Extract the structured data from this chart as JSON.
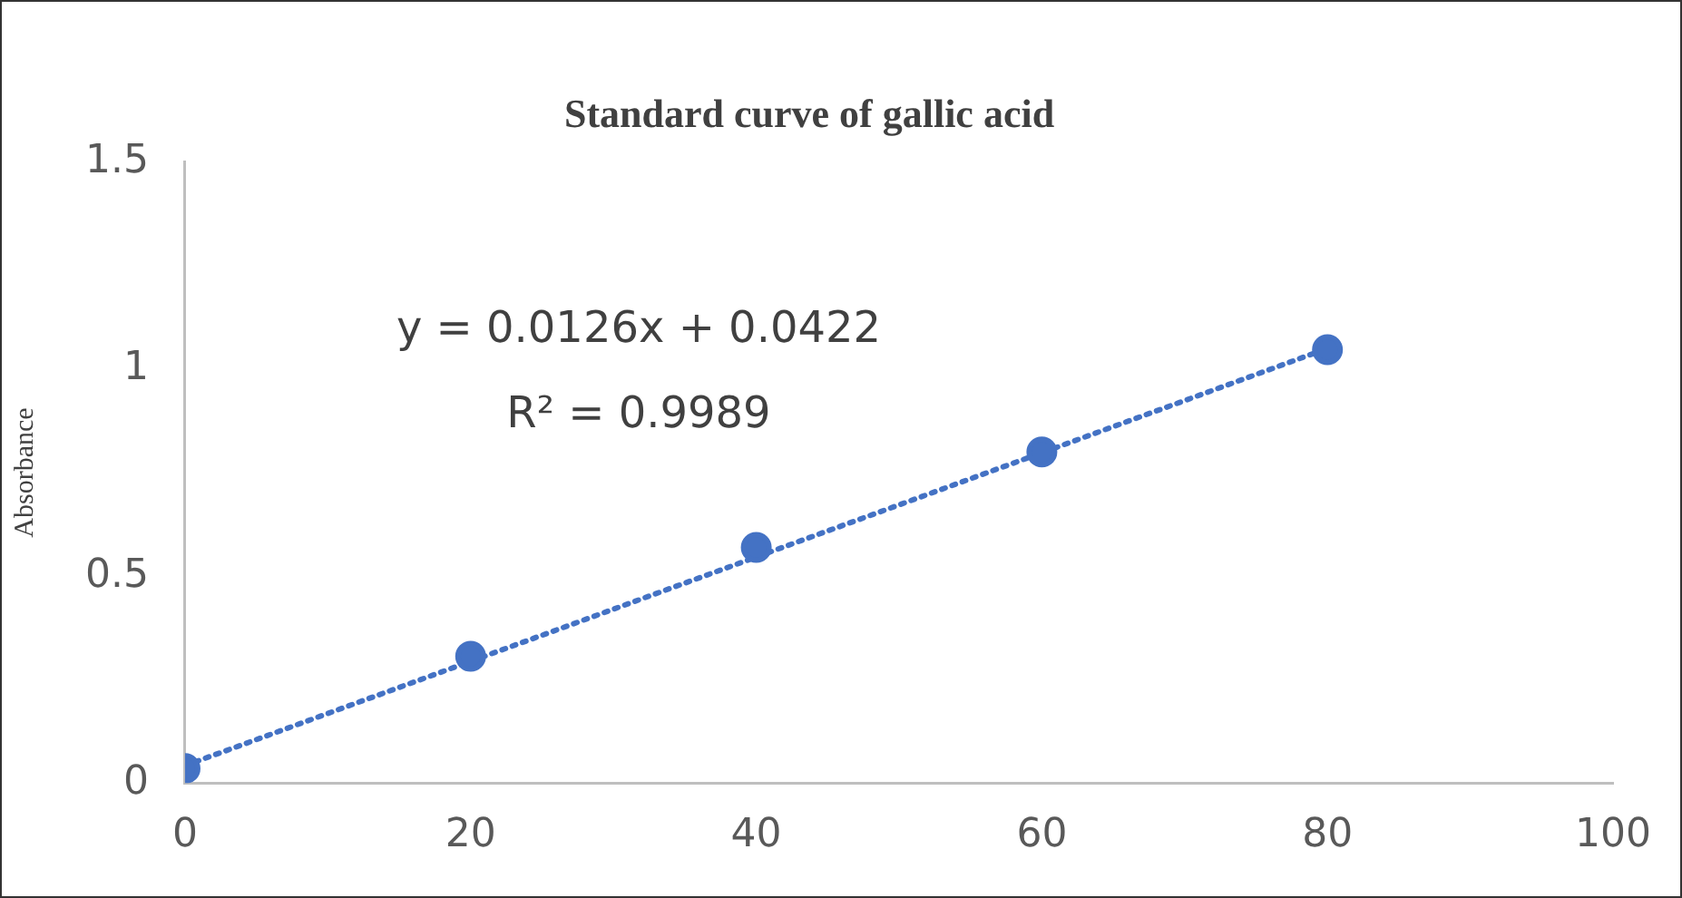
{
  "chart_data": {
    "type": "scatter",
    "title": "Standard curve of gallic acid",
    "ylabel": "Absorbance",
    "x": [
      0,
      20,
      40,
      60,
      80
    ],
    "series": [
      {
        "type": "scatter",
        "color": "#4472c4",
        "marker": "circle",
        "values": [
          0.035,
          0.306,
          0.569,
          0.8,
          1.047
        ]
      },
      {
        "type": "line",
        "color": "#4472c4",
        "marker": "none",
        "line_style": "dotted",
        "x": [
          0,
          80
        ],
        "values": [
          0.042,
          1.05
        ]
      }
    ],
    "annotations": [
      "y = 0.0126x + 0.0422",
      "R² = 0.9989"
    ],
    "xlim": [
      0,
      100
    ],
    "xticks": [
      0,
      20,
      40,
      60,
      80,
      100
    ],
    "ylim": [
      0,
      1.5
    ],
    "yticks": [
      0,
      0.5,
      1,
      1.5
    ],
    "grid": false,
    "legend": false
  }
}
